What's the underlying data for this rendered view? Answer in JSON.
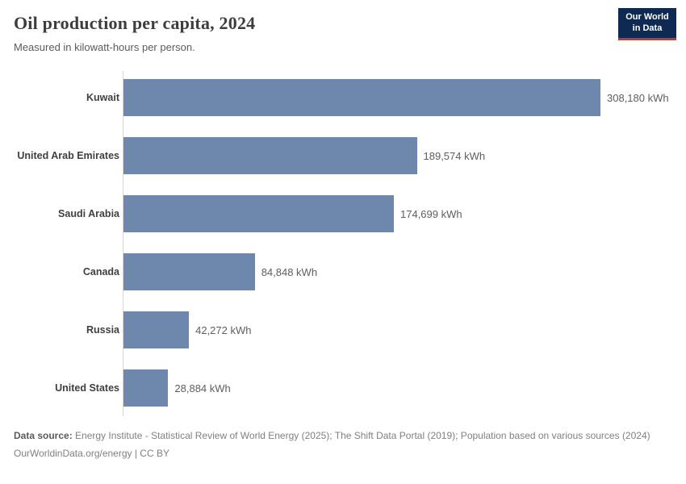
{
  "header": {
    "title": "Oil production per capita, 2024",
    "subtitle": "Measured in kilowatt-hours per person."
  },
  "logo": {
    "line1": "Our World",
    "line2": "in Data"
  },
  "chart_data": {
    "type": "bar",
    "orientation": "horizontal",
    "title": "Oil production per capita, 2024",
    "subtitle": "Measured in kilowatt-hours per person.",
    "unit": "kWh",
    "categories": [
      "Kuwait",
      "United Arab Emirates",
      "Saudi Arabia",
      "Canada",
      "Russia",
      "United States"
    ],
    "values": [
      308180,
      189574,
      174699,
      84848,
      42272,
      28884
    ],
    "value_labels": [
      "308,180 kWh",
      "189,574 kWh",
      "174,699 kWh",
      "84,848 kWh",
      "42,272 kWh",
      "28,884 kWh"
    ],
    "xlim": [
      0,
      308180
    ],
    "grid": false,
    "legend": "none"
  },
  "footer": {
    "source_label": "Data source:",
    "source_text": " Energy Institute - Statistical Review of World Energy (2025); The Shift Data Portal (2019); Population based on various sources (2024)",
    "link_text": "OurWorldinData.org/energy | CC BY"
  },
  "colors": {
    "bar": "#6e87ac",
    "logo_navy": "#0e2a52",
    "logo_red": "#d93025",
    "axis_line": "#d5d5d5"
  }
}
